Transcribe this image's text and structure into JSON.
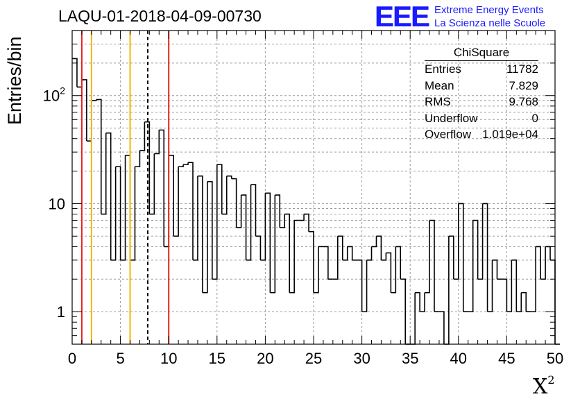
{
  "title": "LAQU-01-2018-04-09-00730",
  "axis": {
    "ylabel": "Entries/bin",
    "xlabel_main": "X",
    "xlabel_sup": "2"
  },
  "logo": {
    "mark": "EEE",
    "line1": "Extreme Energy Events",
    "line2": "La Scienza nelle Scuole",
    "color": "#1a1aff"
  },
  "stats": {
    "title": "ChiSquare",
    "rows": [
      {
        "label": "Entries",
        "value": "11782"
      },
      {
        "label": "Mean",
        "value": "7.829"
      },
      {
        "label": "RMS",
        "value": "9.768"
      },
      {
        "label": "Underflow",
        "value": "0"
      },
      {
        "label": "Overflow",
        "value": "1.019e+04"
      }
    ]
  },
  "chart_data": {
    "type": "histogram",
    "title": "LAQU-01-2018-04-09-00730",
    "xlabel": "X^2",
    "ylabel": "Entries/bin",
    "xlim": [
      0,
      50
    ],
    "ylim": [
      0.5,
      400
    ],
    "yscale": "log",
    "grid": true,
    "bin_width": 0.5,
    "x_ticks": [
      "0",
      "5",
      "10",
      "15",
      "20",
      "25",
      "30",
      "35",
      "40",
      "45",
      "50"
    ],
    "y_ticks": [
      "1",
      "10",
      "10^2"
    ],
    "values": [
      220,
      120,
      140,
      38,
      90,
      92,
      8,
      45,
      3,
      22,
      3,
      28,
      3,
      22,
      31,
      57,
      8,
      29,
      48,
      4,
      28,
      5,
      22,
      23,
      24,
      3,
      18,
      1.5,
      16,
      2,
      23,
      8,
      18,
      17,
      6,
      12,
      3,
      15,
      5,
      3,
      12.5,
      1.5,
      12,
      6,
      8,
      1.5,
      7,
      7,
      8,
      5.5,
      1.5,
      4,
      4,
      2,
      2,
      5,
      3,
      4,
      3,
      3,
      1,
      3,
      4,
      5,
      3,
      3.5,
      1.5,
      4,
      2,
      0.5,
      0.5,
      1.5,
      1,
      1.5,
      7,
      1,
      1,
      0.5,
      5,
      2,
      10,
      1,
      1,
      7,
      2,
      10,
      1,
      3,
      2,
      2,
      1,
      3,
      1,
      1.5,
      1,
      1,
      4,
      2,
      4,
      3,
      0.5
    ],
    "vertical_lines": [
      {
        "x": 1,
        "color": "#e8221f",
        "style": "solid"
      },
      {
        "x": 2,
        "color": "#f5b400",
        "style": "solid"
      },
      {
        "x": 6,
        "color": "#f5b400",
        "style": "solid"
      },
      {
        "x": 7.829,
        "color": "#000000",
        "style": "dashed"
      },
      {
        "x": 10,
        "color": "#e8221f",
        "style": "solid"
      }
    ]
  }
}
